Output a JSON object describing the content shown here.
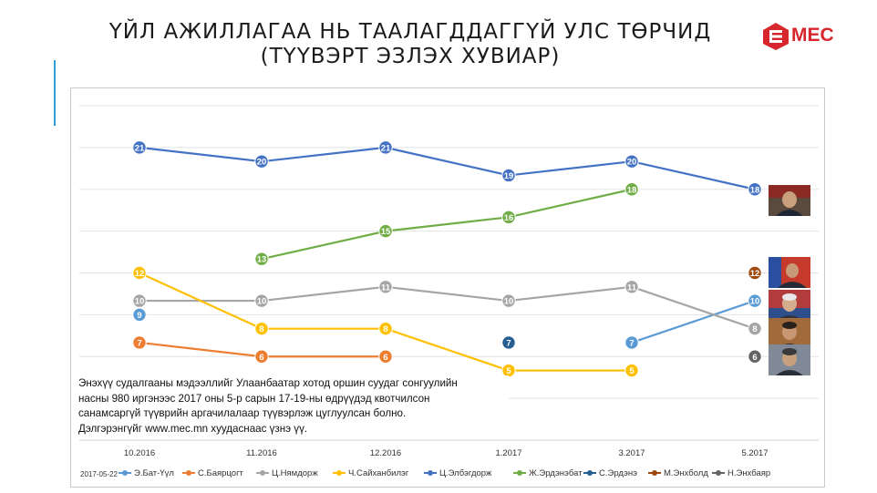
{
  "title": {
    "line1": "ҮЙЛ АЖИЛЛАГАА НЬ ТААЛАГДДАГГҮЙ УЛС ТӨРЧИД",
    "line2": "(ТҮҮВЭРТ ЭЗЛЭХ ХУВИАР)"
  },
  "logo": {
    "text": "MEC",
    "color": "#d7262d"
  },
  "note": {
    "line1": "Энэхүү судалгааны мэдээллийг Улаанбаатар хотод оршин суудаг сонгуулийн",
    "line2": "насны 980 иргэнээс 2017 оны 5-р сарын 17-19-ны өдрүүдэд квотчилсон",
    "line3": "санамсаргүй түүврийн аргачилалаар түүвэрлэж цуглуулсан болно.",
    "line4": "Дэлгэрэнгүйг www.mec.mn хуудаснаас үзнэ үү."
  },
  "date_stamp": "2017-05-22",
  "chart_data": {
    "type": "line",
    "categories": [
      "10.2016",
      "11.2016",
      "12.2016",
      "1.2017",
      "3.2017",
      "5.2017"
    ],
    "ylim": [
      0,
      24
    ],
    "grid": true,
    "legend_position": "bottom",
    "series": [
      {
        "name": "Э.Бат-Үүл",
        "color": "#5b9bd5",
        "values": [
          9,
          null,
          null,
          null,
          7,
          10
        ]
      },
      {
        "name": "С.Баярцогт",
        "color": "#ed7d31",
        "values": [
          7,
          6,
          6,
          null,
          null,
          null
        ]
      },
      {
        "name": "Ц.Нямдорж",
        "color": "#a5a5a5",
        "values": [
          10,
          10,
          11,
          10,
          11,
          8
        ]
      },
      {
        "name": "Ч.Сайханбилэг",
        "color": "#ffc000",
        "values": [
          12,
          8,
          8,
          5,
          5,
          null
        ]
      },
      {
        "name": "Ц.Элбэгдорж",
        "color": "#4472c4",
        "values": [
          21,
          20,
          21,
          19,
          20,
          18
        ]
      },
      {
        "name": "Ж.Эрдэнэбат",
        "color": "#70ad47",
        "values": [
          null,
          13,
          15,
          16,
          18,
          null
        ]
      },
      {
        "name": "С.Эрдэнэ",
        "color": "#255e91",
        "values": [
          null,
          null,
          null,
          7,
          null,
          null
        ]
      },
      {
        "name": "М.Энхболд",
        "color": "#9e480e",
        "values": [
          null,
          null,
          null,
          null,
          null,
          12
        ]
      },
      {
        "name": "Н.Энхбаяр",
        "color": "#636363",
        "values": [
          null,
          null,
          null,
          null,
          null,
          6
        ]
      }
    ]
  }
}
